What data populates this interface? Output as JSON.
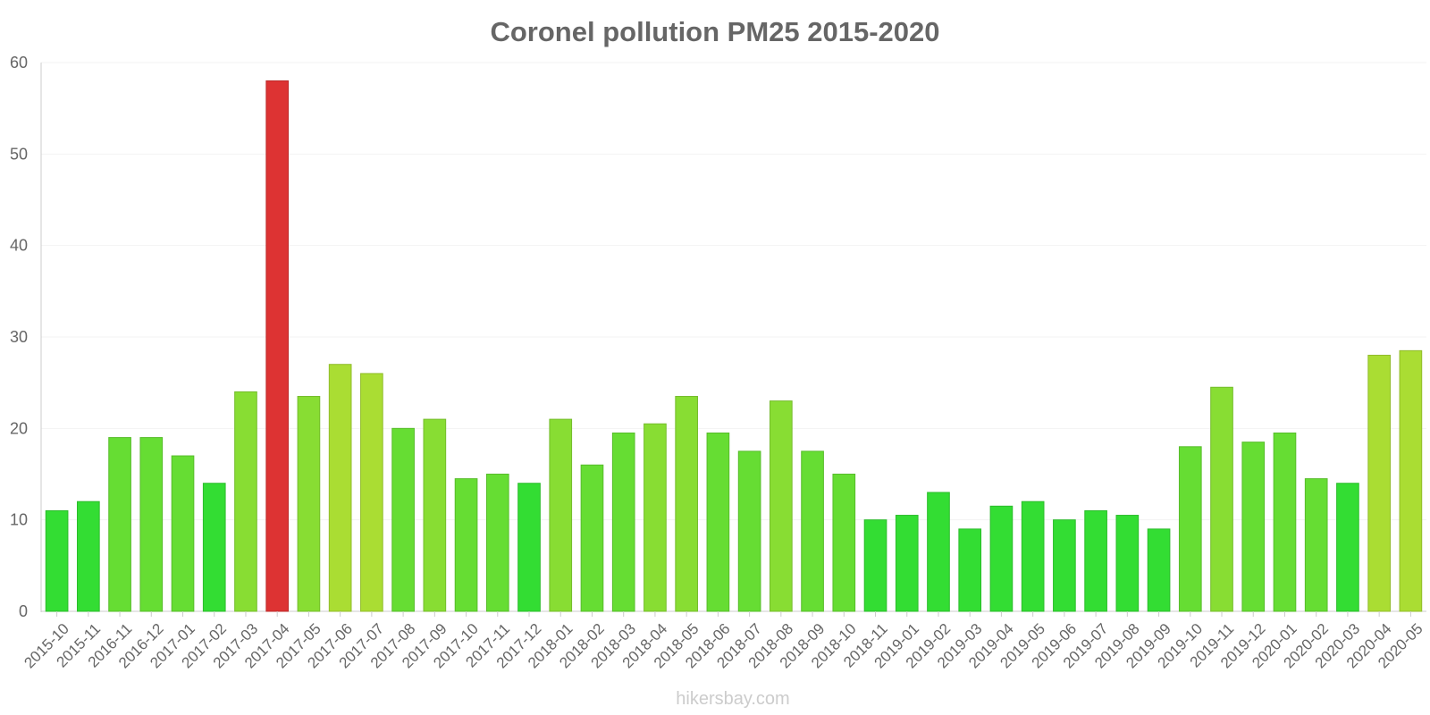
{
  "chart_data": {
    "type": "bar",
    "title": "Coronel pollution PM25 2015-2020",
    "xlabel": "",
    "ylabel": "",
    "ylim": [
      0,
      60
    ],
    "yticks": [
      0,
      10,
      20,
      30,
      40,
      50,
      60
    ],
    "grid": true,
    "categories": [
      "2015-10",
      "2015-11",
      "2016-11",
      "2016-12",
      "2017-01",
      "2017-02",
      "2017-03",
      "2017-04",
      "2017-05",
      "2017-06",
      "2017-07",
      "2017-08",
      "2017-09",
      "2017-10",
      "2017-11",
      "2017-12",
      "2018-01",
      "2018-02",
      "2018-03",
      "2018-04",
      "2018-05",
      "2018-06",
      "2018-07",
      "2018-08",
      "2018-09",
      "2018-10",
      "2018-11",
      "2019-01",
      "2019-02",
      "2019-03",
      "2019-04",
      "2019-05",
      "2019-06",
      "2019-07",
      "2019-08",
      "2019-09",
      "2019-10",
      "2019-11",
      "2019-12",
      "2020-01",
      "2020-02",
      "2020-03",
      "2020-04",
      "2020-05"
    ],
    "values": [
      11,
      12,
      19,
      19,
      17,
      14,
      24,
      58,
      23.5,
      27,
      26,
      20,
      21,
      14.5,
      15,
      14,
      21,
      16,
      19.5,
      20.5,
      23.5,
      19.5,
      17.5,
      23,
      17.5,
      15,
      10,
      10.5,
      13,
      9,
      11.5,
      12,
      10,
      11,
      10.5,
      9,
      18,
      24.5,
      18.5,
      19.5,
      14.5,
      14,
      28,
      28.5
    ],
    "colors": {
      "low": "#33dd33",
      "moderate": "#66dd33",
      "elevated": "#88dd33",
      "high": "#aadd33",
      "very_high": "#dd3333"
    }
  },
  "watermark": "hikersbay.com"
}
